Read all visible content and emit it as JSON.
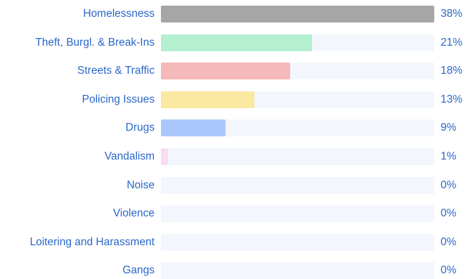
{
  "chart_data": {
    "type": "bar",
    "orientation": "horizontal",
    "categories": [
      "Homelessness",
      "Theft, Burgl. & Break-Ins",
      "Streets & Traffic",
      "Policing Issues",
      "Drugs",
      "Vandalism",
      "Noise",
      "Violence",
      "Loitering and Harassment",
      "Gangs"
    ],
    "values": [
      38,
      21,
      18,
      13,
      9,
      1,
      0,
      0,
      0,
      0
    ],
    "value_labels": [
      "38%",
      "21%",
      "18%",
      "13%",
      "9%",
      "1%",
      "0%",
      "0%",
      "0%",
      "0%"
    ],
    "xlim": [
      0,
      38
    ],
    "unit": "%",
    "colors": [
      "#a6a6a6",
      "#b4efd0",
      "#f6b9b9",
      "#fbe8a1",
      "#a9c7fb",
      "#f9dcf1",
      "#a6a6a6",
      "#a6a6a6",
      "#a6a6a6",
      "#a6a6a6"
    ],
    "track_color": "#f3f7fd",
    "text_color": "#2a67c9",
    "grid": false,
    "legend": "none",
    "title": "",
    "xlabel": "",
    "ylabel": ""
  }
}
